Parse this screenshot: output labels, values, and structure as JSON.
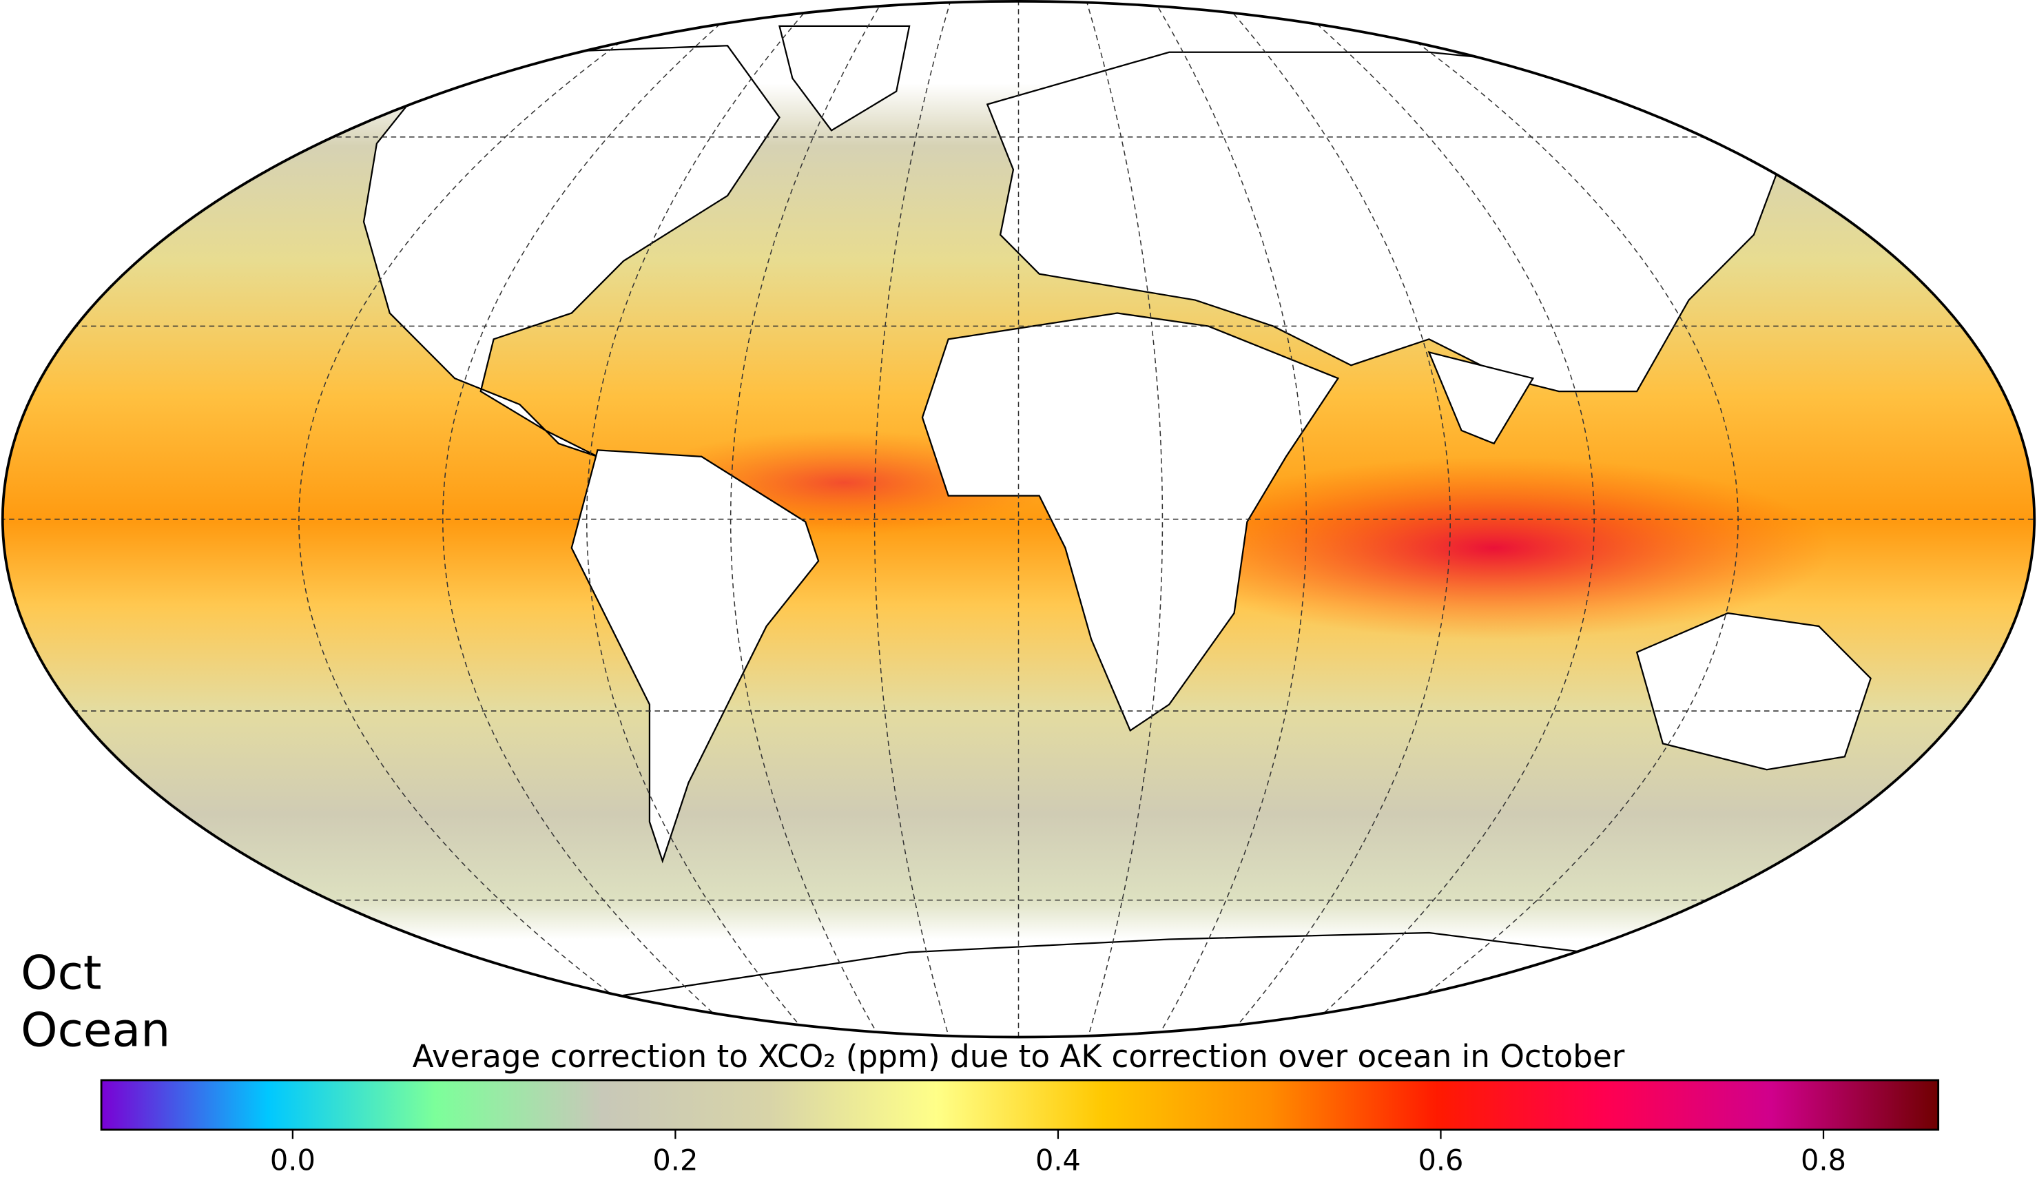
{
  "map": {
    "labels": [
      "Oct",
      "Ocean"
    ],
    "colorbar": {
      "title": "Average correction to XCO₂ (ppm) due to AK correction over ocean in October",
      "range": [
        -0.1,
        0.86
      ],
      "ticks": [
        {
          "value": 0,
          "label": "0.0"
        },
        0.2,
        0.4,
        0.6,
        0.8
      ],
      "colors": [
        "#7b00d4",
        "#00c8ff",
        "#7cff9a",
        "#c8c8b8",
        "#d8d4a8",
        "#ffff88",
        "#ffc800",
        "#ff8c00",
        "#ff1a00",
        "#ff0050",
        "#d0008c",
        "#700000"
      ]
    }
  }
}
